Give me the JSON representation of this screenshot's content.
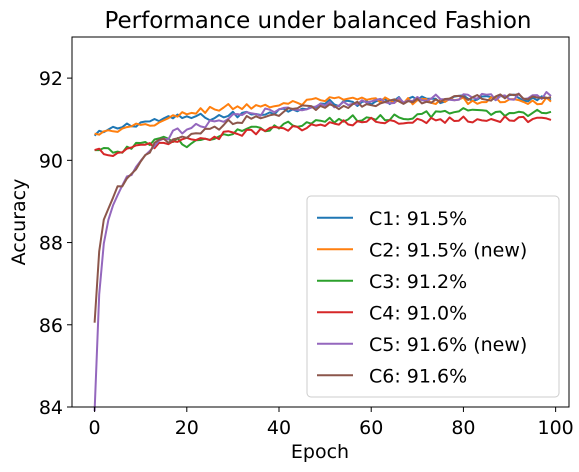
{
  "chart_data": {
    "type": "line",
    "title": "Performance under balanced Fashion",
    "xlabel": "Epoch",
    "ylabel": "Accuracy",
    "xlim": [
      -4.9,
      102.9
    ],
    "ylim": [
      84,
      93
    ],
    "xticks": [
      0,
      20,
      40,
      60,
      80,
      100
    ],
    "yticks": [
      84,
      86,
      88,
      90,
      92
    ],
    "grid": false,
    "legend_position": "lower-right",
    "series": [
      {
        "name": "C1: 91.5%",
        "color": "#1f77b4",
        "points": [
          [
            0,
            90.6
          ],
          [
            5,
            90.8
          ],
          [
            10,
            90.92
          ],
          [
            15,
            91.0
          ],
          [
            20,
            91.05
          ],
          [
            25,
            91.05
          ],
          [
            30,
            91.1
          ],
          [
            35,
            91.15
          ],
          [
            40,
            91.2
          ],
          [
            45,
            91.3
          ],
          [
            50,
            91.38
          ],
          [
            55,
            91.4
          ],
          [
            60,
            91.42
          ],
          [
            65,
            91.45
          ],
          [
            70,
            91.47
          ],
          [
            75,
            91.48
          ],
          [
            80,
            91.5
          ],
          [
            85,
            91.5
          ],
          [
            90,
            91.52
          ],
          [
            95,
            91.52
          ],
          [
            99,
            91.5
          ]
        ]
      },
      {
        "name": "C2: 91.5% (new)",
        "color": "#ff7f0e",
        "points": [
          [
            0,
            90.65
          ],
          [
            5,
            90.7
          ],
          [
            10,
            90.85
          ],
          [
            15,
            90.95
          ],
          [
            20,
            91.15
          ],
          [
            25,
            91.25
          ],
          [
            30,
            91.3
          ],
          [
            35,
            91.32
          ],
          [
            40,
            91.35
          ],
          [
            45,
            91.4
          ],
          [
            50,
            91.45
          ],
          [
            55,
            91.48
          ],
          [
            60,
            91.45
          ],
          [
            65,
            91.45
          ],
          [
            70,
            91.45
          ],
          [
            75,
            91.42
          ],
          [
            80,
            91.45
          ],
          [
            85,
            91.45
          ],
          [
            90,
            91.45
          ],
          [
            95,
            91.45
          ],
          [
            99,
            91.45
          ]
        ]
      },
      {
        "name": "C3: 91.2%",
        "color": "#2ca02c",
        "points": [
          [
            0,
            90.25
          ],
          [
            5,
            90.2
          ],
          [
            10,
            90.4
          ],
          [
            15,
            90.55
          ],
          [
            20,
            90.4
          ],
          [
            25,
            90.5
          ],
          [
            30,
            90.65
          ],
          [
            35,
            90.75
          ],
          [
            40,
            90.85
          ],
          [
            45,
            90.9
          ],
          [
            50,
            90.95
          ],
          [
            55,
            91.0
          ],
          [
            60,
            91.05
          ],
          [
            65,
            91.05
          ],
          [
            70,
            91.1
          ],
          [
            75,
            91.15
          ],
          [
            80,
            91.2
          ],
          [
            85,
            91.15
          ],
          [
            90,
            91.15
          ],
          [
            95,
            91.15
          ],
          [
            99,
            91.2
          ]
        ]
      },
      {
        "name": "C4: 91.0%",
        "color": "#d62728",
        "points": [
          [
            0,
            90.25
          ],
          [
            5,
            90.15
          ],
          [
            10,
            90.35
          ],
          [
            15,
            90.4
          ],
          [
            20,
            90.5
          ],
          [
            25,
            90.55
          ],
          [
            30,
            90.65
          ],
          [
            35,
            90.7
          ],
          [
            40,
            90.75
          ],
          [
            45,
            90.8
          ],
          [
            50,
            90.85
          ],
          [
            55,
            90.9
          ],
          [
            60,
            90.95
          ],
          [
            65,
            90.95
          ],
          [
            70,
            90.98
          ],
          [
            75,
            91.0
          ],
          [
            80,
            91.0
          ],
          [
            85,
            91.0
          ],
          [
            90,
            91.0
          ],
          [
            95,
            91.0
          ],
          [
            99,
            91.0
          ]
        ]
      },
      {
        "name": "C5: 91.6% (new)",
        "color": "#9467bd",
        "points": [
          [
            0,
            83.9
          ],
          [
            1,
            86.8
          ],
          [
            2,
            88.0
          ],
          [
            3,
            88.6
          ],
          [
            5,
            89.1
          ],
          [
            7,
            89.55
          ],
          [
            9,
            89.8
          ],
          [
            11,
            90.1
          ],
          [
            13,
            90.35
          ],
          [
            15,
            90.5
          ],
          [
            18,
            90.7
          ],
          [
            20,
            90.75
          ],
          [
            25,
            90.9
          ],
          [
            30,
            91.05
          ],
          [
            35,
            91.15
          ],
          [
            40,
            91.25
          ],
          [
            45,
            91.3
          ],
          [
            50,
            91.35
          ],
          [
            55,
            91.4
          ],
          [
            60,
            91.42
          ],
          [
            65,
            91.45
          ],
          [
            70,
            91.5
          ],
          [
            75,
            91.52
          ],
          [
            80,
            91.55
          ],
          [
            85,
            91.55
          ],
          [
            90,
            91.55
          ],
          [
            95,
            91.58
          ],
          [
            99,
            91.58
          ]
        ]
      },
      {
        "name": "C6: 91.6%",
        "color": "#8c564b",
        "points": [
          [
            0,
            86.05
          ],
          [
            1,
            87.8
          ],
          [
            2,
            88.55
          ],
          [
            3,
            88.85
          ],
          [
            5,
            89.3
          ],
          [
            7,
            89.5
          ],
          [
            9,
            89.75
          ],
          [
            11,
            90.1
          ],
          [
            13,
            90.35
          ],
          [
            15,
            90.5
          ],
          [
            18,
            90.55
          ],
          [
            20,
            90.6
          ],
          [
            25,
            90.75
          ],
          [
            30,
            90.95
          ],
          [
            35,
            91.05
          ],
          [
            40,
            91.15
          ],
          [
            45,
            91.25
          ],
          [
            50,
            91.3
          ],
          [
            55,
            91.35
          ],
          [
            60,
            91.4
          ],
          [
            65,
            91.42
          ],
          [
            70,
            91.45
          ],
          [
            75,
            91.48
          ],
          [
            80,
            91.5
          ],
          [
            85,
            91.52
          ],
          [
            90,
            91.52
          ],
          [
            95,
            91.55
          ],
          [
            99,
            91.55
          ]
        ]
      }
    ]
  }
}
